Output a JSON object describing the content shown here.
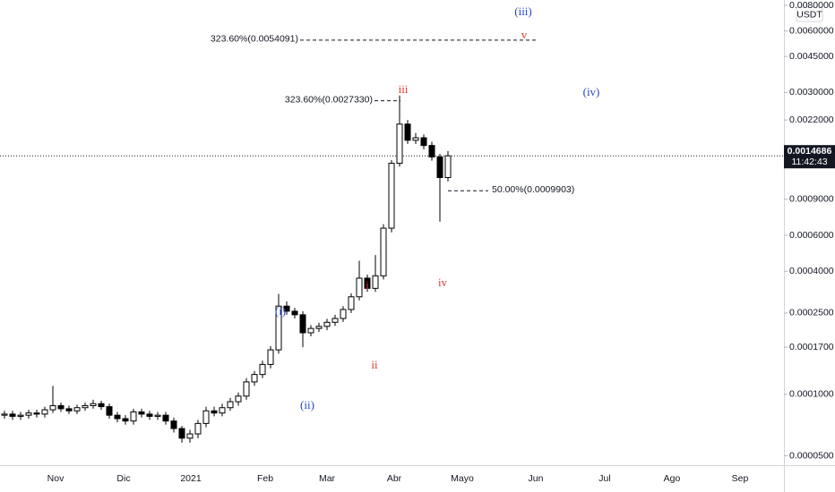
{
  "chart_data": {
    "type": "candlestick",
    "currency": "USDT",
    "last_price": {
      "value": 0.0014686,
      "label": "0.0014686"
    },
    "countdown": "11:42:43",
    "log_scale": true,
    "ylim": [
      4.5e-05,
      0.0085
    ],
    "yticks": [
      {
        "value": 5e-05,
        "label": "0.0000500"
      },
      {
        "value": 0.0001,
        "label": "0.0001000"
      },
      {
        "value": 0.00017,
        "label": "0.0001700"
      },
      {
        "value": 0.00025,
        "label": "0.0002500"
      },
      {
        "value": 0.0004,
        "label": "0.0004000"
      },
      {
        "value": 0.0006,
        "label": "0.0006000"
      },
      {
        "value": 0.0009,
        "label": "0.0009000"
      },
      {
        "value": 0.0022,
        "label": "0.0022000"
      },
      {
        "value": 0.003,
        "label": "0.0030000"
      },
      {
        "value": 0.0045,
        "label": "0.0045000"
      },
      {
        "value": 0.006,
        "label": "0.0060000"
      },
      {
        "value": 0.008,
        "label": "0.0080000"
      }
    ],
    "x_labels": [
      "Nov",
      "Dic",
      "2021",
      "Feb",
      "Mar",
      "Abr",
      "Mayo",
      "Jun",
      "Jul",
      "Ago",
      "Sep"
    ],
    "up_color": "#ffffff",
    "down_color": "#000000",
    "edge_color": "#000000",
    "open": [
      7.9e-05,
      8e-05,
      7.8e-05,
      7.9e-05,
      8.1e-05,
      8e-05,
      8.4e-05,
      8.8e-05,
      8.5e-05,
      8.3e-05,
      8.6e-05,
      8.8e-05,
      9e-05,
      8.7e-05,
      7.9e-05,
      7.6e-05,
      7.4e-05,
      8.2e-05,
      8e-05,
      7.8e-05,
      7.9e-05,
      7.4e-05,
      6.8e-05,
      6.1e-05,
      6.4e-05,
      7.2e-05,
      8.3e-05,
      8.1e-05,
      8.6e-05,
      9.2e-05,
      9.8e-05,
      0.000115,
      0.000125,
      0.00014,
      0.000165,
      0.00027,
      0.000255,
      0.000245,
      0.0002,
      0.00021,
      0.000215,
      0.000225,
      0.000235,
      0.00026,
      0.0003,
      0.00037,
      0.00033,
      0.00038,
      0.00065,
      0.00135,
      0.0021,
      0.00175,
      0.0018,
      0.00165,
      0.00145,
      0.00115
    ],
    "high": [
      8.3e-05,
      8.3e-05,
      8.2e-05,
      8.4e-05,
      8.4e-05,
      8.7e-05,
      0.00011,
      9.1e-05,
      8.8e-05,
      8.9e-05,
      9.1e-05,
      9.4e-05,
      9.3e-05,
      9e-05,
      8.2e-05,
      7.9e-05,
      8.5e-05,
      8.5e-05,
      8.3e-05,
      8.2e-05,
      8.2e-05,
      7.7e-05,
      7e-05,
      6.7e-05,
      7.5e-05,
      8.7e-05,
      8.7e-05,
      9e-05,
      9.6e-05,
      0.000102,
      0.00012,
      0.00013,
      0.000146,
      0.000172,
      0.00031,
      0.000285,
      0.000265,
      0.000255,
      0.000218,
      0.000224,
      0.000234,
      0.000245,
      0.00027,
      0.000312,
      0.00045,
      0.000385,
      0.00048,
      0.00068,
      0.0014,
      0.0029,
      0.0022,
      0.0019,
      0.00187,
      0.00172,
      0.0015,
      0.00155
    ],
    "low": [
      7.6e-05,
      7.5e-05,
      7.5e-05,
      7.6e-05,
      7.7e-05,
      7.7e-05,
      8.1e-05,
      8.2e-05,
      8e-05,
      8e-05,
      8.3e-05,
      8.5e-05,
      8.4e-05,
      7.6e-05,
      7.3e-05,
      7.1e-05,
      7.1e-05,
      7.7e-05,
      7.5e-05,
      7.5e-05,
      7.1e-05,
      6.5e-05,
      5.8e-05,
      5.8e-05,
      6.1e-05,
      6.9e-05,
      7.8e-05,
      7.8e-05,
      8.3e-05,
      8.8e-05,
      9.4e-05,
      0.00011,
      0.00012,
      0.000134,
      0.000158,
      0.000245,
      0.000235,
      0.00017,
      0.000192,
      0.000202,
      0.000206,
      0.000216,
      0.000226,
      0.00025,
      0.000288,
      0.000317,
      0.000317,
      0.000365,
      0.00062,
      0.0013,
      0.00168,
      0.00168,
      0.00158,
      0.00139,
      0.0007,
      0.0011
    ],
    "close": [
      8e-05,
      7.8e-05,
      7.9e-05,
      8.1e-05,
      8e-05,
      8.4e-05,
      8.8e-05,
      8.5e-05,
      8.3e-05,
      8.6e-05,
      8.8e-05,
      9e-05,
      8.7e-05,
      7.9e-05,
      7.6e-05,
      7.4e-05,
      8.2e-05,
      8e-05,
      7.8e-05,
      7.9e-05,
      7.4e-05,
      6.8e-05,
      6.1e-05,
      6.4e-05,
      7.2e-05,
      8.3e-05,
      8.1e-05,
      8.6e-05,
      9.2e-05,
      9.8e-05,
      0.000115,
      0.000125,
      0.00014,
      0.000165,
      0.00027,
      0.000255,
      0.000245,
      0.0002,
      0.00021,
      0.000215,
      0.000225,
      0.000235,
      0.00026,
      0.0003,
      0.00037,
      0.00033,
      0.00038,
      0.00065,
      0.00135,
      0.0021,
      0.00175,
      0.0018,
      0.00165,
      0.00145,
      0.00115,
      0.0014686
    ],
    "fib_levels": [
      {
        "label": "323.60%(0.0054091)",
        "value": 0.0054091
      },
      {
        "label": "323.60%(0.0027330)",
        "value": 0.002733
      },
      {
        "label": "50.00%(0.0009903)",
        "value": 0.0009903
      }
    ],
    "wave_labels": [
      "(iii)",
      "v",
      "iii",
      "(iv)",
      "i",
      "ii",
      "iv",
      "(i)",
      "(ii)"
    ]
  }
}
